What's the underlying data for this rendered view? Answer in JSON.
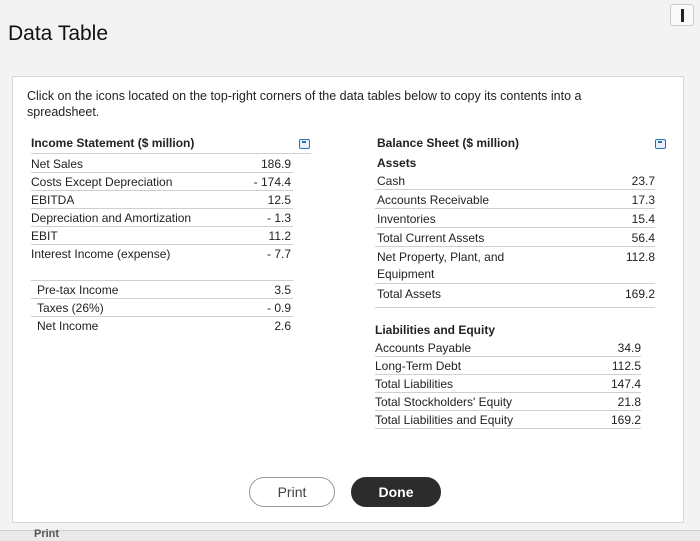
{
  "window": {
    "title": "Data Table"
  },
  "instructions": "Click on the icons located on the top-right corners of the data tables below to copy its contents into a spreadsheet.",
  "income": {
    "header": "Income Statement ($ million)",
    "rows": [
      {
        "label": "Net Sales",
        "value": "186.9"
      },
      {
        "label": "Costs Except Depreciation",
        "value": "- 174.4"
      },
      {
        "label": "EBITDA",
        "value": "12.5"
      },
      {
        "label": "Depreciation and Amortization",
        "value": "- 1.3"
      },
      {
        "label": "EBIT",
        "value": "11.2"
      },
      {
        "label": "Interest Income (expense)",
        "value": "- 7.7"
      },
      {
        "label": "Pre-tax Income",
        "value": "3.5"
      },
      {
        "label": "Taxes (26%)",
        "value": "- 0.9"
      },
      {
        "label": "Net Income",
        "value": "2.6"
      }
    ]
  },
  "balance": {
    "header": "Balance Sheet ($ million)",
    "assets_label": "Assets",
    "assets": [
      {
        "label": "Cash",
        "value": "23.7"
      },
      {
        "label": "Accounts Receivable",
        "value": "17.3"
      },
      {
        "label": "Inventories",
        "value": "15.4"
      },
      {
        "label": "Total Current Assets",
        "value": "56.4"
      },
      {
        "label": "Net Property, Plant, and",
        "label2": "Equipment",
        "value": "112.8"
      },
      {
        "label": "Total Assets",
        "value": "169.2"
      }
    ],
    "liabilities_label": "Liabilities and Equity",
    "liabilities": [
      {
        "label": "Accounts Payable",
        "value": "34.9"
      },
      {
        "label": "Long-Term Debt",
        "value": "112.5"
      },
      {
        "label": "Total Liabilities",
        "value": "147.4"
      },
      {
        "label": "Total Stockholders' Equity",
        "value": "21.8"
      },
      {
        "label": "Total Liabilities and Equity",
        "value": "169.2"
      }
    ]
  },
  "buttons": {
    "print": "Print",
    "done": "Done"
  },
  "footer": {
    "print": "Print"
  },
  "icons": {
    "copy": "copy-to-spreadsheet-icon",
    "minimize": "minimize-icon"
  },
  "colors": {
    "icon_accent": "#2a6fb8",
    "done_bg": "#2c2c2c"
  }
}
